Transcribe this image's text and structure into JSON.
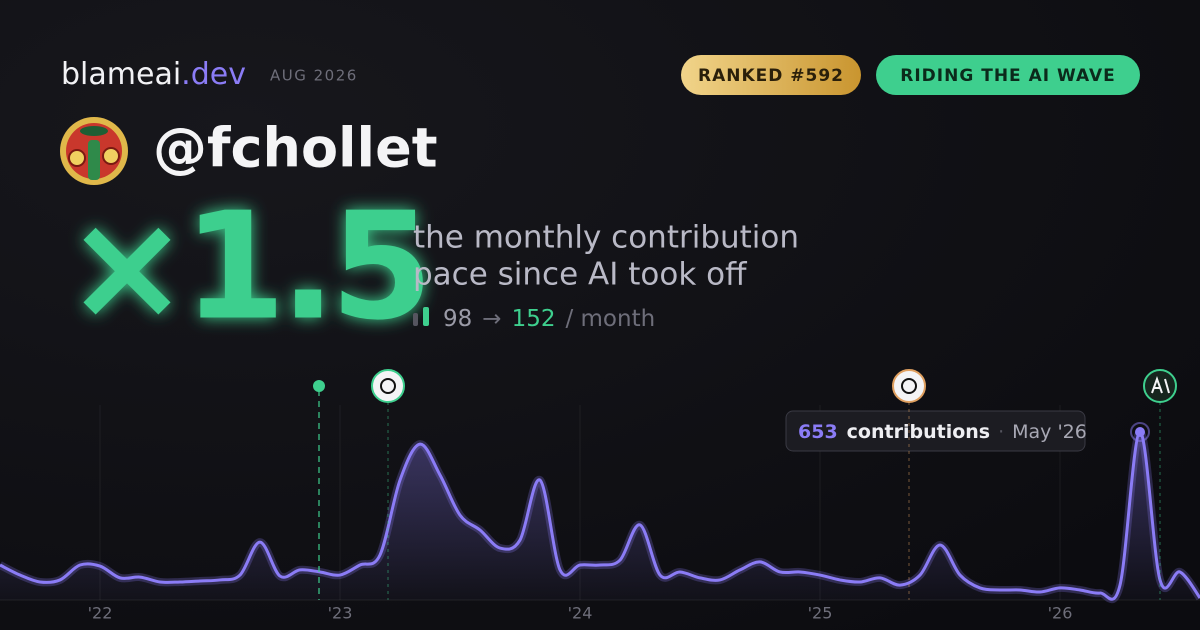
{
  "header": {
    "brand": "blameai",
    "brand_suffix": ".dev",
    "date": "AUG 2026",
    "badges": [
      "RANKED #592",
      "RIDING THE AI WAVE"
    ]
  },
  "profile": {
    "handle": "@fchollet"
  },
  "headline": {
    "multiplier": "×1.5",
    "description": [
      "the monthly contribution",
      "pace since AI took off"
    ],
    "before": 98,
    "arrow": "→",
    "after": 152,
    "unit": "/ month"
  },
  "chart_data": {
    "type": "line",
    "categories": [
      null,
      null,
      null,
      null,
      null,
      "'22",
      null,
      null,
      null,
      null,
      null,
      null,
      null,
      null,
      null,
      null,
      null,
      "'23",
      null,
      null,
      null,
      null,
      null,
      null,
      null,
      null,
      null,
      null,
      null,
      "'24",
      null,
      null,
      null,
      null,
      null,
      null,
      null,
      null,
      null,
      null,
      null,
      "'25",
      null,
      null,
      null,
      null,
      null,
      null,
      null,
      null,
      null,
      null,
      null,
      "'26",
      null,
      null,
      null,
      null,
      null,
      null,
      null
    ],
    "series": [
      {
        "name": "contributions",
        "color": "#8b7cf6",
        "values": [
          136,
          97,
          70,
          78,
          136,
          132,
          86,
          89,
          70,
          70,
          74,
          78,
          97,
          225,
          93,
          117,
          109,
          97,
          136,
          175,
          466,
          606,
          486,
          330,
          272,
          202,
          233,
          466,
          117,
          136,
          136,
          155,
          292,
          97,
          109,
          86,
          78,
          117,
          148,
          109,
          109,
          97,
          78,
          70,
          86,
          58,
          97,
          214,
          97,
          47,
          39,
          39,
          31,
          47,
          39,
          27,
          58,
          653,
          78,
          109,
          8
        ]
      }
    ],
    "tooltip": {
      "index": 57,
      "label": "contributions",
      "date": "May '26"
    }
  }
}
